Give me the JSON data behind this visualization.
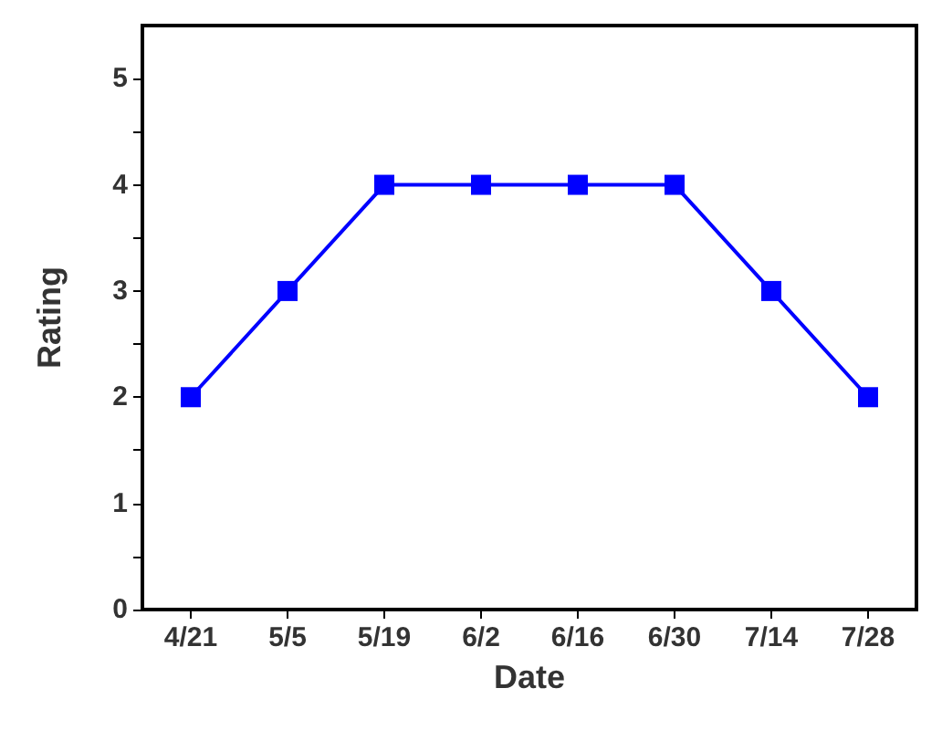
{
  "chart_data": {
    "type": "line",
    "xlabel": "Date",
    "ylabel": "Rating",
    "categories": [
      "4/21",
      "5/5",
      "5/19",
      "6/2",
      "6/16",
      "6/30",
      "7/14",
      "7/28"
    ],
    "series": [
      {
        "color": "#0000ff",
        "values": [
          2,
          3,
          4,
          4,
          4,
          4,
          3,
          2
        ]
      }
    ],
    "ylim": [
      0,
      5.5
    ],
    "yticks": [
      0,
      {
        "value": 0.5,
        "label": null
      },
      1,
      {
        "value": 1.5,
        "label": null
      },
      2,
      {
        "value": 2.5,
        "label": null
      },
      3,
      {
        "value": 3.5,
        "label": null
      },
      4,
      {
        "value": 4.5,
        "label": null
      },
      5
    ],
    "marker": "square",
    "line_style": "solid",
    "grid": false
  }
}
